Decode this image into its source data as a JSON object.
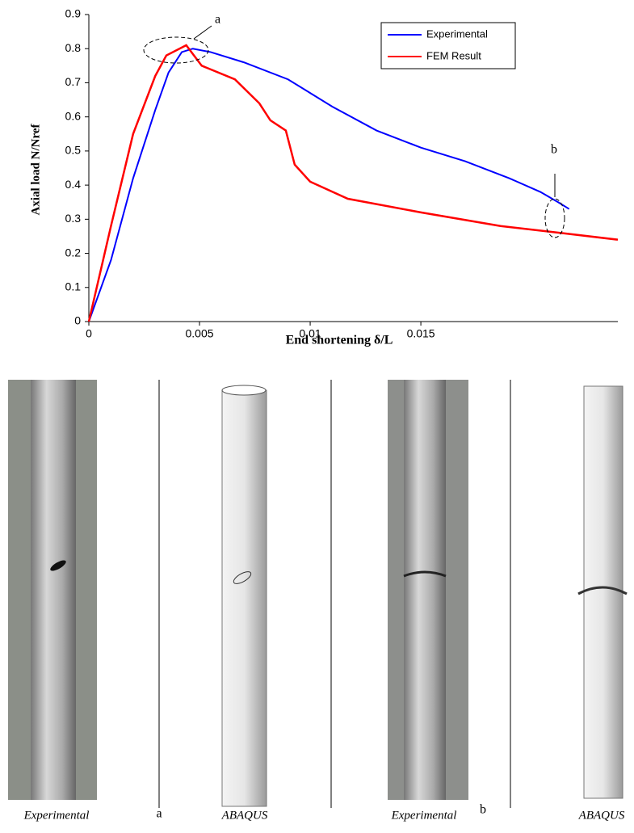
{
  "chart_data": {
    "type": "line",
    "xlabel": "End shortening δ/L",
    "ylabel": "Axial load N/Nref",
    "annotations": [
      "a",
      "b"
    ],
    "captions": [
      "Experimental",
      "a",
      "ABAQUS",
      "Experimental",
      "b",
      "ABAQUS"
    ],
    "xlim": [
      0,
      0.0239
    ],
    "ylim": [
      0,
      0.9
    ],
    "xticks": [
      0,
      0.005,
      0.01,
      0.015
    ],
    "yticks": [
      0,
      0.1,
      0.2,
      0.3,
      0.4,
      0.5,
      0.6,
      0.7,
      0.8,
      0.9
    ],
    "legend": "upper right",
    "series": [
      {
        "name": "Experimental",
        "color": "#0000ff",
        "x": [
          0,
          0.001,
          0.002,
          0.003,
          0.0036,
          0.0042,
          0.0047,
          0.0055,
          0.007,
          0.009,
          0.01,
          0.011,
          0.013,
          0.015,
          0.017,
          0.019,
          0.0204,
          0.0212,
          0.0217
        ],
        "values": [
          0,
          0.18,
          0.42,
          0.62,
          0.73,
          0.79,
          0.8,
          0.79,
          0.76,
          0.71,
          0.67,
          0.63,
          0.56,
          0.51,
          0.47,
          0.42,
          0.38,
          0.35,
          0.33
        ]
      },
      {
        "name": "FEM Result",
        "color": "#ff0000",
        "x": [
          0,
          0.001,
          0.002,
          0.003,
          0.0035,
          0.0044,
          0.0051,
          0.0066,
          0.0077,
          0.0082,
          0.0089,
          0.0093,
          0.01,
          0.0117,
          0.015,
          0.0186,
          0.0213,
          0.0239
        ],
        "values": [
          0,
          0.28,
          0.55,
          0.72,
          0.78,
          0.81,
          0.75,
          0.71,
          0.64,
          0.59,
          0.56,
          0.46,
          0.41,
          0.36,
          0.32,
          0.28,
          0.26,
          0.24
        ]
      }
    ]
  }
}
